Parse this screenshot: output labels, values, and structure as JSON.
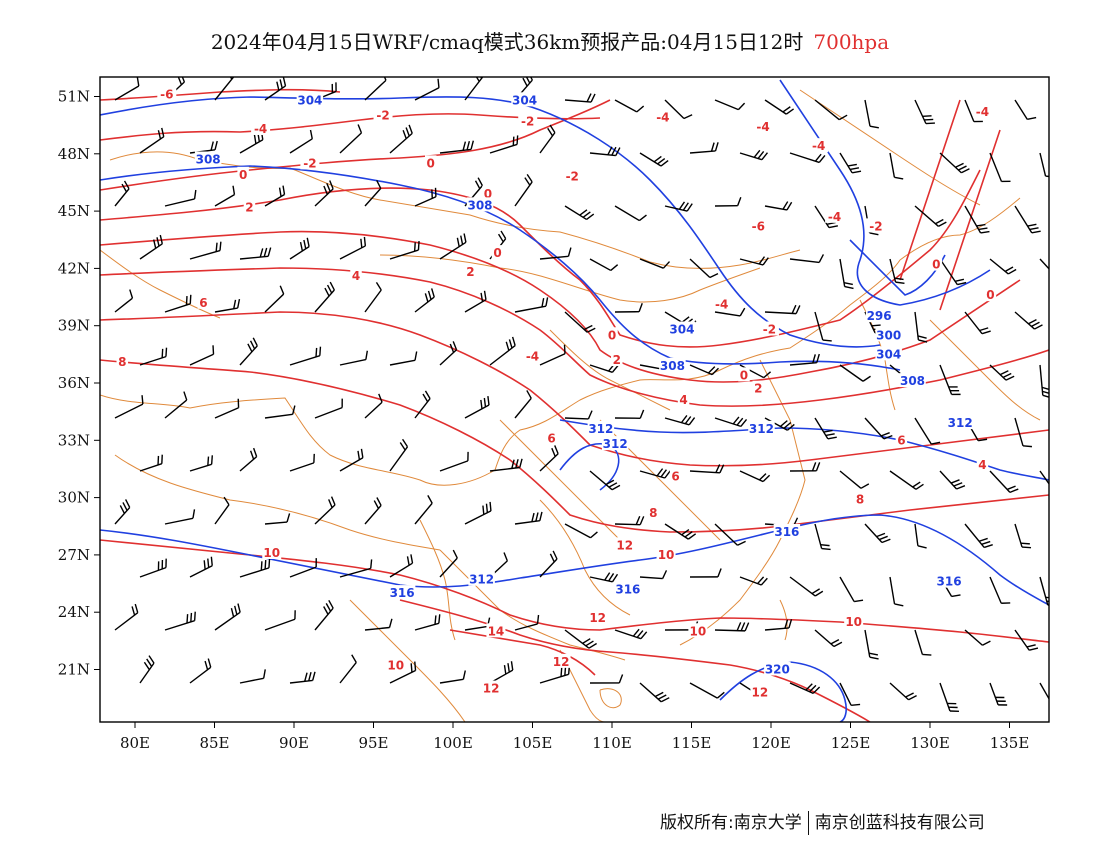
{
  "title": {
    "main": "2024年04月15日WRF/cmaq模式36km预报产品:04月15日12时",
    "level": "700hpa"
  },
  "colors": {
    "temperature": "#e03030",
    "height": "#2040e0",
    "border": "#e08a3c",
    "wind": "#000000"
  },
  "axes": {
    "lon_labels": [
      "80E",
      "85E",
      "90E",
      "95E",
      "100E",
      "105E",
      "110E",
      "115E",
      "120E",
      "125E",
      "130E",
      "135E"
    ],
    "lat_labels": [
      "51N",
      "48N",
      "45N",
      "42N",
      "39N",
      "36N",
      "33N",
      "30N",
      "27N",
      "24N",
      "21N"
    ]
  },
  "temperature_labels": [
    {
      "text": "-6",
      "lon": 82.0,
      "lat": 51.1
    },
    {
      "text": "-2",
      "lon": 95.6,
      "lat": 50.0
    },
    {
      "text": "-4",
      "lon": 87.9,
      "lat": 49.3
    },
    {
      "text": "-2",
      "lon": 104.7,
      "lat": 49.7
    },
    {
      "text": "-4",
      "lon": 113.2,
      "lat": 49.9
    },
    {
      "text": "-2",
      "lon": 91.0,
      "lat": 47.5
    },
    {
      "text": "0",
      "lon": 98.6,
      "lat": 47.5
    },
    {
      "text": "0",
      "lon": 86.8,
      "lat": 46.9
    },
    {
      "text": "-2",
      "lon": 107.5,
      "lat": 46.8
    },
    {
      "text": "0",
      "lon": 102.2,
      "lat": 45.9
    },
    {
      "text": "2",
      "lon": 87.2,
      "lat": 45.2
    },
    {
      "text": "0",
      "lon": 102.8,
      "lat": 42.8
    },
    {
      "text": "2",
      "lon": 101.1,
      "lat": 41.8
    },
    {
      "text": "4",
      "lon": 93.9,
      "lat": 41.6
    },
    {
      "text": "6",
      "lon": 84.3,
      "lat": 40.2
    },
    {
      "text": "8",
      "lon": 79.2,
      "lat": 37.1
    },
    {
      "text": "-4",
      "lon": 119.5,
      "lat": 49.4
    },
    {
      "text": "-4",
      "lon": 123.0,
      "lat": 48.4
    },
    {
      "text": "-4",
      "lon": 124.0,
      "lat": 44.7
    },
    {
      "text": "-2",
      "lon": 126.6,
      "lat": 44.2
    },
    {
      "text": "-6",
      "lon": 119.2,
      "lat": 44.2
    },
    {
      "text": "-4",
      "lon": 116.9,
      "lat": 40.1
    },
    {
      "text": "-2",
      "lon": 119.9,
      "lat": 38.8
    },
    {
      "text": "0",
      "lon": 110.0,
      "lat": 38.5
    },
    {
      "text": "-4",
      "lon": 105.0,
      "lat": 37.4
    },
    {
      "text": "2",
      "lon": 110.3,
      "lat": 37.2
    },
    {
      "text": "0",
      "lon": 118.3,
      "lat": 36.4
    },
    {
      "text": "2",
      "lon": 119.2,
      "lat": 35.7
    },
    {
      "text": "4",
      "lon": 114.5,
      "lat": 35.1
    },
    {
      "text": "6",
      "lon": 106.2,
      "lat": 33.1
    },
    {
      "text": "6",
      "lon": 128.2,
      "lat": 33.0
    },
    {
      "text": "6",
      "lon": 114.0,
      "lat": 31.1
    },
    {
      "text": "4",
      "lon": 133.3,
      "lat": 31.7
    },
    {
      "text": "8",
      "lon": 112.6,
      "lat": 29.2
    },
    {
      "text": "8",
      "lon": 125.6,
      "lat": 29.9
    },
    {
      "text": "10",
      "lon": 88.6,
      "lat": 27.1
    },
    {
      "text": "12",
      "lon": 110.8,
      "lat": 27.5
    },
    {
      "text": "10",
      "lon": 113.4,
      "lat": 27.0
    },
    {
      "text": "14",
      "lon": 102.7,
      "lat": 23.0
    },
    {
      "text": "12",
      "lon": 109.1,
      "lat": 23.7
    },
    {
      "text": "10",
      "lon": 115.4,
      "lat": 23.0
    },
    {
      "text": "10",
      "lon": 125.2,
      "lat": 23.5
    },
    {
      "text": "12",
      "lon": 106.8,
      "lat": 21.4
    },
    {
      "text": "10",
      "lon": 96.4,
      "lat": 21.2
    },
    {
      "text": "12",
      "lon": 102.4,
      "lat": 20.0
    },
    {
      "text": "12",
      "lon": 119.3,
      "lat": 19.8
    },
    {
      "text": "0",
      "lon": 130.4,
      "lat": 42.2
    },
    {
      "text": "0",
      "lon": 133.8,
      "lat": 40.6
    },
    {
      "text": "-4",
      "lon": 133.3,
      "lat": 50.2
    }
  ],
  "height_labels": [
    {
      "text": "304",
      "lon": 91.0,
      "lat": 50.8
    },
    {
      "text": "304",
      "lon": 104.5,
      "lat": 50.8
    },
    {
      "text": "308",
      "lon": 84.6,
      "lat": 47.7
    },
    {
      "text": "308",
      "lon": 101.7,
      "lat": 45.3
    },
    {
      "text": "296",
      "lon": 126.8,
      "lat": 39.5
    },
    {
      "text": "300",
      "lon": 127.4,
      "lat": 38.5
    },
    {
      "text": "304",
      "lon": 114.4,
      "lat": 38.8
    },
    {
      "text": "304",
      "lon": 127.4,
      "lat": 37.5
    },
    {
      "text": "308",
      "lon": 113.8,
      "lat": 36.9
    },
    {
      "text": "308",
      "lon": 128.9,
      "lat": 36.1
    },
    {
      "text": "312",
      "lon": 109.3,
      "lat": 33.6
    },
    {
      "text": "312",
      "lon": 110.2,
      "lat": 32.8
    },
    {
      "text": "312",
      "lon": 119.4,
      "lat": 33.6
    },
    {
      "text": "312",
      "lon": 131.9,
      "lat": 33.9
    },
    {
      "text": "316",
      "lon": 121.0,
      "lat": 28.2
    },
    {
      "text": "316",
      "lon": 131.2,
      "lat": 25.6
    },
    {
      "text": "312",
      "lon": 101.8,
      "lat": 25.7
    },
    {
      "text": "316",
      "lon": 96.8,
      "lat": 25.0
    },
    {
      "text": "316",
      "lon": 111.0,
      "lat": 25.2
    },
    {
      "text": "320",
      "lon": 120.4,
      "lat": 21.0
    }
  ],
  "footer": {
    "copyright": "版权所有:南京大学",
    "company": "南京创蓝科技有限公司"
  }
}
